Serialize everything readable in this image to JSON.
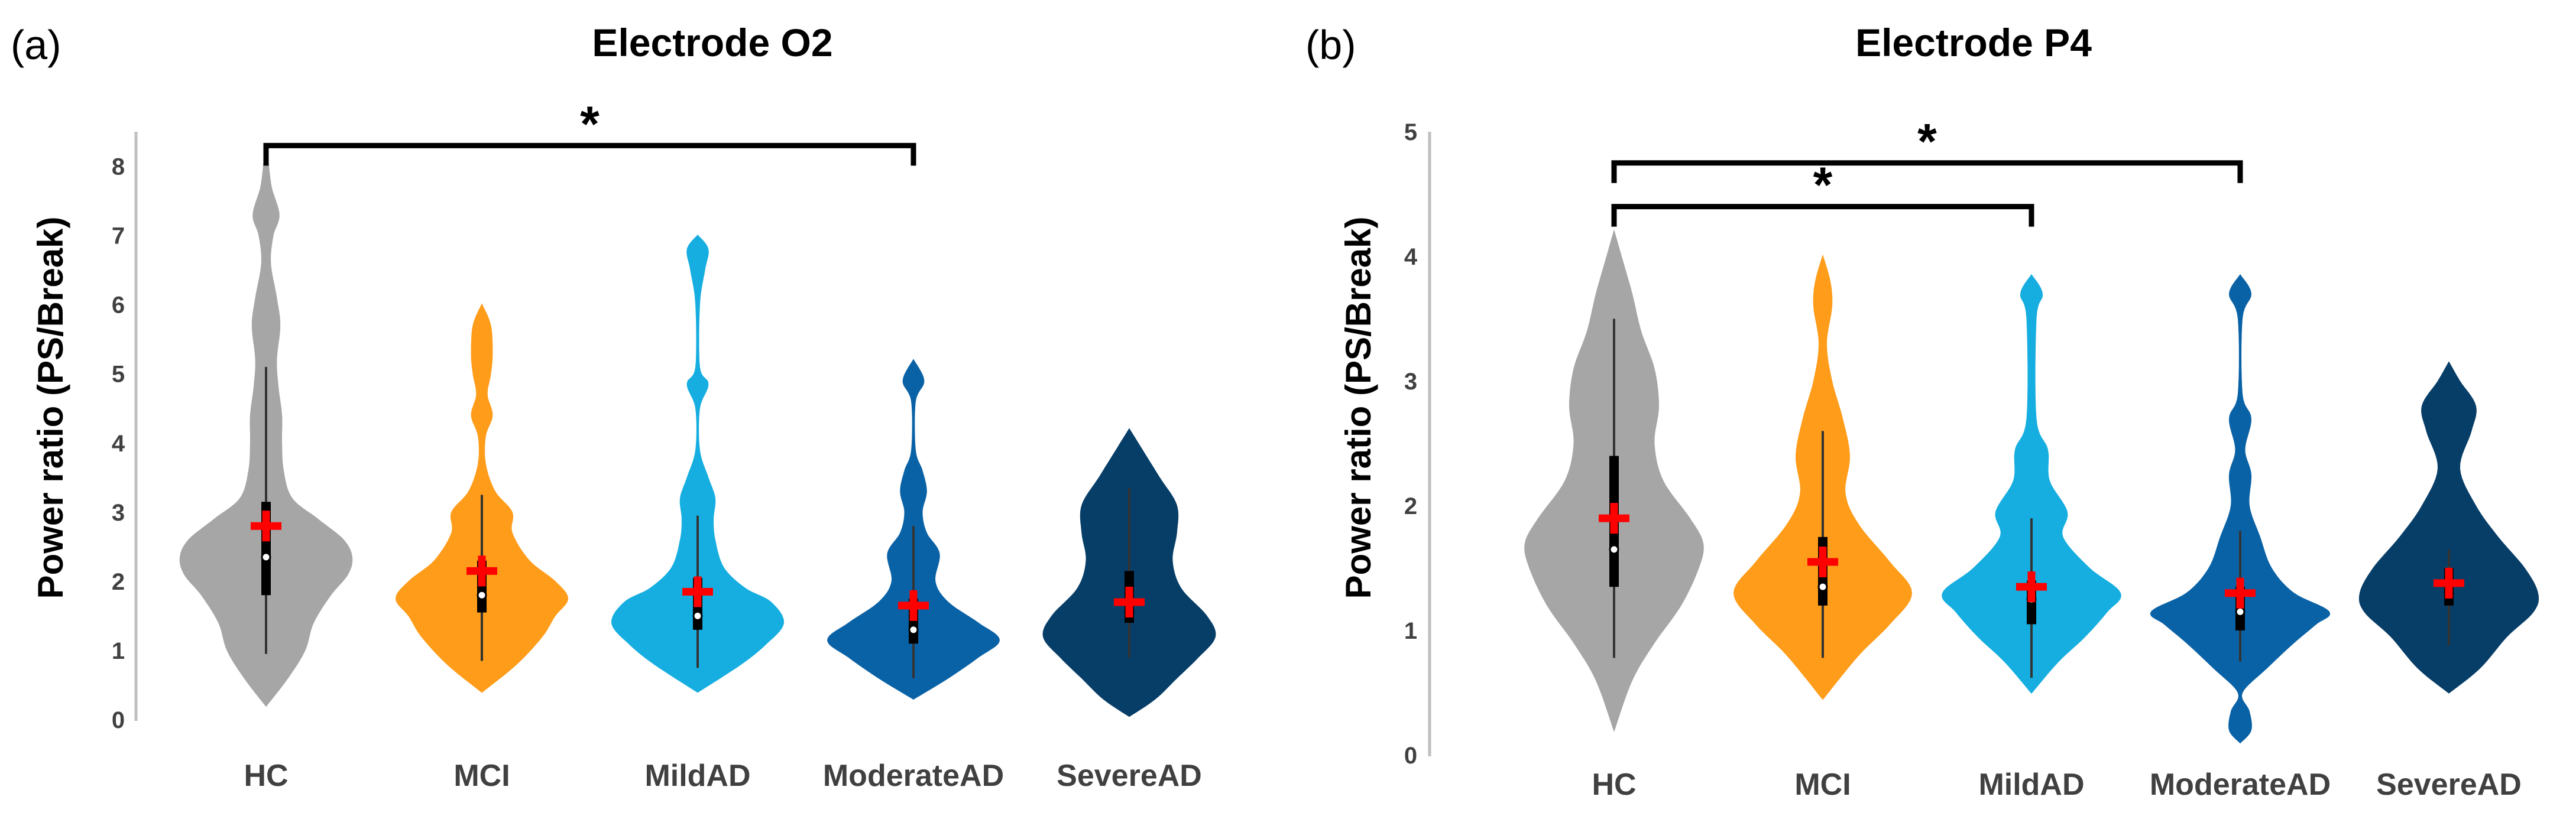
{
  "chart_data": [
    {
      "type": "violin",
      "panel_label": "(a)",
      "title": "Electrode O2",
      "xlabel": "",
      "ylabel": "Power ratio (PS/Break)",
      "ylim": [
        0,
        8.5
      ],
      "yticks": [
        "0",
        "1",
        "2",
        "3",
        "4",
        "5",
        "6",
        "7",
        "8"
      ],
      "categories": [
        "HC",
        "MCI",
        "MildAD",
        "ModerateAD",
        "SevereAD"
      ],
      "colors": [
        "#a6a6a6",
        "#ff9c1a",
        "#16aee0",
        "#0a62a6",
        "#073e68"
      ],
      "series": [
        {
          "name": "HC",
          "min": 0.95,
          "q1": 1.8,
          "median": 2.35,
          "q3": 3.15,
          "max": 5.1,
          "mean": 2.8,
          "density": [
            [
              0.2,
              0.0
            ],
            [
              0.6,
              0.25
            ],
            [
              1.0,
              0.45
            ],
            [
              1.4,
              0.55
            ],
            [
              1.8,
              0.75
            ],
            [
              2.1,
              0.95
            ],
            [
              2.35,
              1.0
            ],
            [
              2.6,
              0.9
            ],
            [
              2.9,
              0.6
            ],
            [
              3.2,
              0.3
            ],
            [
              3.6,
              0.2
            ],
            [
              4.0,
              0.18
            ],
            [
              4.4,
              0.18
            ],
            [
              4.8,
              0.14
            ],
            [
              5.2,
              0.12
            ],
            [
              5.7,
              0.16
            ],
            [
              6.1,
              0.12
            ],
            [
              6.6,
              0.05
            ],
            [
              7.0,
              0.08
            ],
            [
              7.3,
              0.15
            ],
            [
              7.7,
              0.06
            ],
            [
              8.1,
              0.02
            ],
            [
              8.3,
              0.0
            ]
          ]
        },
        {
          "name": "MCI",
          "min": 0.85,
          "q1": 1.55,
          "median": 1.8,
          "q3": 2.3,
          "max": 3.25,
          "mean": 2.15,
          "density": [
            [
              0.4,
              0.0
            ],
            [
              0.8,
              0.4
            ],
            [
              1.2,
              0.7
            ],
            [
              1.5,
              0.85
            ],
            [
              1.75,
              1.0
            ],
            [
              2.0,
              0.85
            ],
            [
              2.3,
              0.55
            ],
            [
              2.7,
              0.35
            ],
            [
              3.0,
              0.35
            ],
            [
              3.3,
              0.15
            ],
            [
              3.7,
              0.04
            ],
            [
              4.1,
              0.04
            ],
            [
              4.4,
              0.12
            ],
            [
              4.7,
              0.06
            ],
            [
              5.0,
              0.1
            ],
            [
              5.3,
              0.12
            ],
            [
              5.7,
              0.1
            ],
            [
              6.0,
              0.0
            ]
          ]
        },
        {
          "name": "MildAD",
          "min": 0.75,
          "q1": 1.3,
          "median": 1.5,
          "q3": 2.05,
          "max": 2.95,
          "mean": 1.85,
          "density": [
            [
              0.4,
              0.0
            ],
            [
              0.8,
              0.5
            ],
            [
              1.1,
              0.8
            ],
            [
              1.4,
              1.0
            ],
            [
              1.7,
              0.85
            ],
            [
              1.9,
              0.55
            ],
            [
              2.2,
              0.3
            ],
            [
              2.6,
              0.2
            ],
            [
              2.9,
              0.18
            ],
            [
              3.2,
              0.2
            ],
            [
              3.5,
              0.12
            ],
            [
              3.9,
              0.02
            ],
            [
              4.5,
              0.02
            ],
            [
              4.85,
              0.12
            ],
            [
              5.1,
              0.02
            ],
            [
              6.0,
              0.02
            ],
            [
              6.5,
              0.08
            ],
            [
              6.8,
              0.12
            ],
            [
              7.0,
              0.0
            ]
          ]
        },
        {
          "name": "ModerateAD",
          "min": 0.6,
          "q1": 1.1,
          "median": 1.3,
          "q3": 1.75,
          "max": 2.8,
          "mean": 1.65,
          "density": [
            [
              0.3,
              0.0
            ],
            [
              0.6,
              0.4
            ],
            [
              0.9,
              0.75
            ],
            [
              1.15,
              1.0
            ],
            [
              1.4,
              0.75
            ],
            [
              1.7,
              0.4
            ],
            [
              2.0,
              0.25
            ],
            [
              2.4,
              0.3
            ],
            [
              2.7,
              0.15
            ],
            [
              3.0,
              0.1
            ],
            [
              3.3,
              0.15
            ],
            [
              3.6,
              0.1
            ],
            [
              3.9,
              0.02
            ],
            [
              4.6,
              0.02
            ],
            [
              4.9,
              0.12
            ],
            [
              5.2,
              0.0
            ]
          ]
        },
        {
          "name": "SevereAD",
          "min": 0.9,
          "q1": 1.4,
          "median": 1.55,
          "q3": 2.15,
          "max": 3.35,
          "mean": 1.7,
          "density": [
            [
              0.05,
              0.0
            ],
            [
              0.3,
              0.3
            ],
            [
              0.6,
              0.55
            ],
            [
              0.9,
              0.8
            ],
            [
              1.2,
              1.0
            ],
            [
              1.5,
              0.9
            ],
            [
              1.9,
              0.6
            ],
            [
              2.3,
              0.5
            ],
            [
              2.7,
              0.55
            ],
            [
              3.1,
              0.55
            ],
            [
              3.5,
              0.35
            ],
            [
              3.9,
              0.15
            ],
            [
              4.2,
              0.0
            ]
          ]
        }
      ],
      "significance": [
        {
          "from": "HC",
          "to": "ModerateAD",
          "label": "*",
          "y": 8.3
        }
      ]
    },
    {
      "type": "violin",
      "panel_label": "(b)",
      "title": "Electrode P4",
      "xlabel": "",
      "ylabel": "Power ratio (PS/Break)",
      "ylim": [
        0,
        5
      ],
      "yticks": [
        "0",
        "1",
        "2",
        "3",
        "4",
        "5"
      ],
      "categories": [
        "HC",
        "MCI",
        "MildAD",
        "ModerateAD",
        "SevereAD"
      ],
      "colors": [
        "#a6a6a6",
        "#ff9c1a",
        "#16aee0",
        "#0a62a6",
        "#073e68"
      ],
      "series": [
        {
          "name": "HC",
          "min": 0.78,
          "q1": 1.35,
          "median": 1.65,
          "q3": 2.4,
          "max": 3.5,
          "mean": 1.9,
          "density": [
            [
              0.2,
              0.0
            ],
            [
              0.6,
              0.2
            ],
            [
              0.9,
              0.45
            ],
            [
              1.2,
              0.75
            ],
            [
              1.5,
              0.95
            ],
            [
              1.7,
              1.0
            ],
            [
              1.9,
              0.85
            ],
            [
              2.2,
              0.55
            ],
            [
              2.5,
              0.45
            ],
            [
              2.8,
              0.5
            ],
            [
              3.1,
              0.45
            ],
            [
              3.4,
              0.3
            ],
            [
              3.7,
              0.2
            ],
            [
              4.0,
              0.08
            ],
            [
              4.2,
              0.0
            ]
          ]
        },
        {
          "name": "MCI",
          "min": 0.78,
          "q1": 1.2,
          "median": 1.35,
          "q3": 1.75,
          "max": 2.6,
          "mean": 1.55,
          "density": [
            [
              0.45,
              0.0
            ],
            [
              0.8,
              0.4
            ],
            [
              1.05,
              0.75
            ],
            [
              1.3,
              1.0
            ],
            [
              1.55,
              0.75
            ],
            [
              1.85,
              0.4
            ],
            [
              2.1,
              0.25
            ],
            [
              2.4,
              0.3
            ],
            [
              2.7,
              0.22
            ],
            [
              3.0,
              0.1
            ],
            [
              3.3,
              0.04
            ],
            [
              3.6,
              0.1
            ],
            [
              3.8,
              0.08
            ],
            [
              4.0,
              0.0
            ]
          ]
        },
        {
          "name": "MildAD",
          "min": 0.62,
          "q1": 1.05,
          "median": 1.25,
          "q3": 1.4,
          "max": 1.9,
          "mean": 1.35,
          "density": [
            [
              0.5,
              0.0
            ],
            [
              0.75,
              0.3
            ],
            [
              0.95,
              0.6
            ],
            [
              1.15,
              0.85
            ],
            [
              1.3,
              1.0
            ],
            [
              1.5,
              0.65
            ],
            [
              1.75,
              0.35
            ],
            [
              1.95,
              0.4
            ],
            [
              2.2,
              0.2
            ],
            [
              2.45,
              0.18
            ],
            [
              2.7,
              0.05
            ],
            [
              3.5,
              0.05
            ],
            [
              3.7,
              0.12
            ],
            [
              3.85,
              0.0
            ]
          ]
        },
        {
          "name": "ModerateAD",
          "min": 0.75,
          "q1": 1.0,
          "median": 1.15,
          "q3": 1.35,
          "max": 1.8,
          "mean": 1.3,
          "density": [
            [
              0.1,
              0.0
            ],
            [
              0.2,
              0.12
            ],
            [
              0.35,
              0.1
            ],
            [
              0.5,
              0.02
            ],
            [
              0.7,
              0.3
            ],
            [
              0.9,
              0.6
            ],
            [
              1.05,
              0.85
            ],
            [
              1.15,
              1.0
            ],
            [
              1.3,
              0.6
            ],
            [
              1.5,
              0.35
            ],
            [
              1.75,
              0.22
            ],
            [
              2.0,
              0.1
            ],
            [
              2.25,
              0.12
            ],
            [
              2.45,
              0.05
            ],
            [
              2.7,
              0.12
            ],
            [
              2.9,
              0.02
            ],
            [
              3.5,
              0.02
            ],
            [
              3.7,
              0.12
            ],
            [
              3.85,
              0.0
            ]
          ]
        },
        {
          "name": "SevereAD",
          "min": 0.88,
          "q1": 1.2,
          "median": 1.3,
          "q3": 1.5,
          "max": 1.65,
          "mean": 1.38,
          "density": [
            [
              0.5,
              0.0
            ],
            [
              0.7,
              0.35
            ],
            [
              0.95,
              0.65
            ],
            [
              1.15,
              0.95
            ],
            [
              1.3,
              1.0
            ],
            [
              1.5,
              0.85
            ],
            [
              1.75,
              0.55
            ],
            [
              2.0,
              0.3
            ],
            [
              2.3,
              0.12
            ],
            [
              2.6,
              0.25
            ],
            [
              2.8,
              0.3
            ],
            [
              3.0,
              0.12
            ],
            [
              3.15,
              0.0
            ]
          ]
        }
      ],
      "significance": [
        {
          "from": "HC",
          "to": "ModerateAD",
          "label": "*",
          "y": 4.75
        },
        {
          "from": "HC",
          "to": "MildAD",
          "label": "*",
          "y": 4.4
        }
      ]
    }
  ]
}
